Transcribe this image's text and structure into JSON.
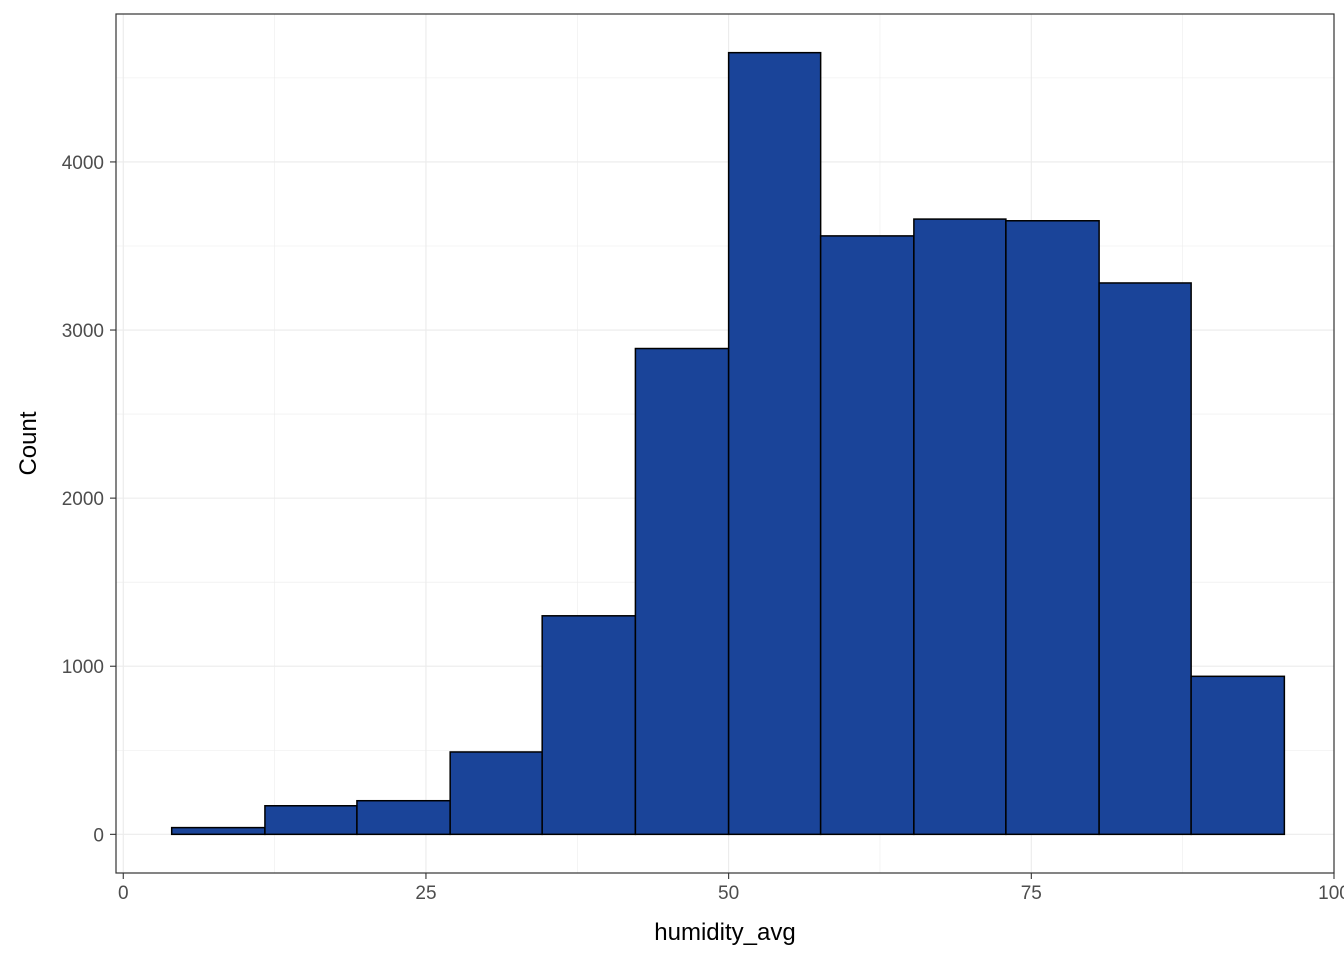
{
  "chart_data": {
    "type": "bar",
    "subtype": "histogram",
    "title": "",
    "xlabel": "humidity_avg",
    "ylabel": "Count",
    "xlim": [
      -0.6,
      100.0
    ],
    "ylim": [
      -230,
      4880
    ],
    "x_ticks": [
      0,
      25,
      50,
      75,
      100
    ],
    "x_tick_labels": [
      "0",
      "25",
      "50",
      "75",
      "100"
    ],
    "y_ticks": [
      0,
      1000,
      2000,
      3000,
      4000
    ],
    "y_tick_labels": [
      "0",
      "1000",
      "2000",
      "3000",
      "4000"
    ],
    "bins": [
      {
        "x0": 4.0,
        "x1": 11.7,
        "count": 40
      },
      {
        "x0": 11.7,
        "x1": 19.3,
        "count": 170
      },
      {
        "x0": 19.3,
        "x1": 27.0,
        "count": 200
      },
      {
        "x0": 27.0,
        "x1": 34.6,
        "count": 490
      },
      {
        "x0": 34.6,
        "x1": 42.3,
        "count": 1300
      },
      {
        "x0": 42.3,
        "x1": 50.0,
        "count": 2890
      },
      {
        "x0": 50.0,
        "x1": 57.6,
        "count": 4650
      },
      {
        "x0": 57.6,
        "x1": 65.3,
        "count": 3560
      },
      {
        "x0": 65.3,
        "x1": 72.9,
        "count": 3660
      },
      {
        "x0": 72.9,
        "x1": 80.6,
        "count": 3650
      },
      {
        "x0": 80.6,
        "x1": 88.2,
        "count": 3280
      },
      {
        "x0": 88.2,
        "x1": 95.9,
        "count": 940
      }
    ],
    "grid": true,
    "legend": "none",
    "colors": {
      "bar_fill": "#1a4499",
      "bar_stroke": "#000000",
      "grid": "#ebebeb",
      "panel_border": "#333333"
    }
  }
}
